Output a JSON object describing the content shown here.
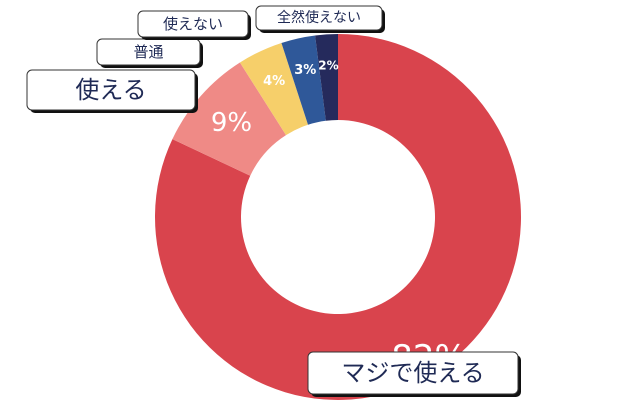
{
  "chart_data": {
    "type": "pie",
    "variant": "donut",
    "title": "",
    "slices": [
      {
        "label": "マジで使える",
        "value": 82,
        "value_label": "82%",
        "color": "#d9444d"
      },
      {
        "label": "使える",
        "value": 9,
        "value_label": "9%",
        "color": "#ef8a86"
      },
      {
        "label": "普通",
        "value": 4,
        "value_label": "4%",
        "color": "#f6cf6a"
      },
      {
        "label": "使えない",
        "value": 3,
        "value_label": "3%",
        "color": "#2f5899"
      },
      {
        "label": "全然使えない",
        "value": 2,
        "value_label": "2%",
        "color": "#252a5c"
      }
    ]
  }
}
